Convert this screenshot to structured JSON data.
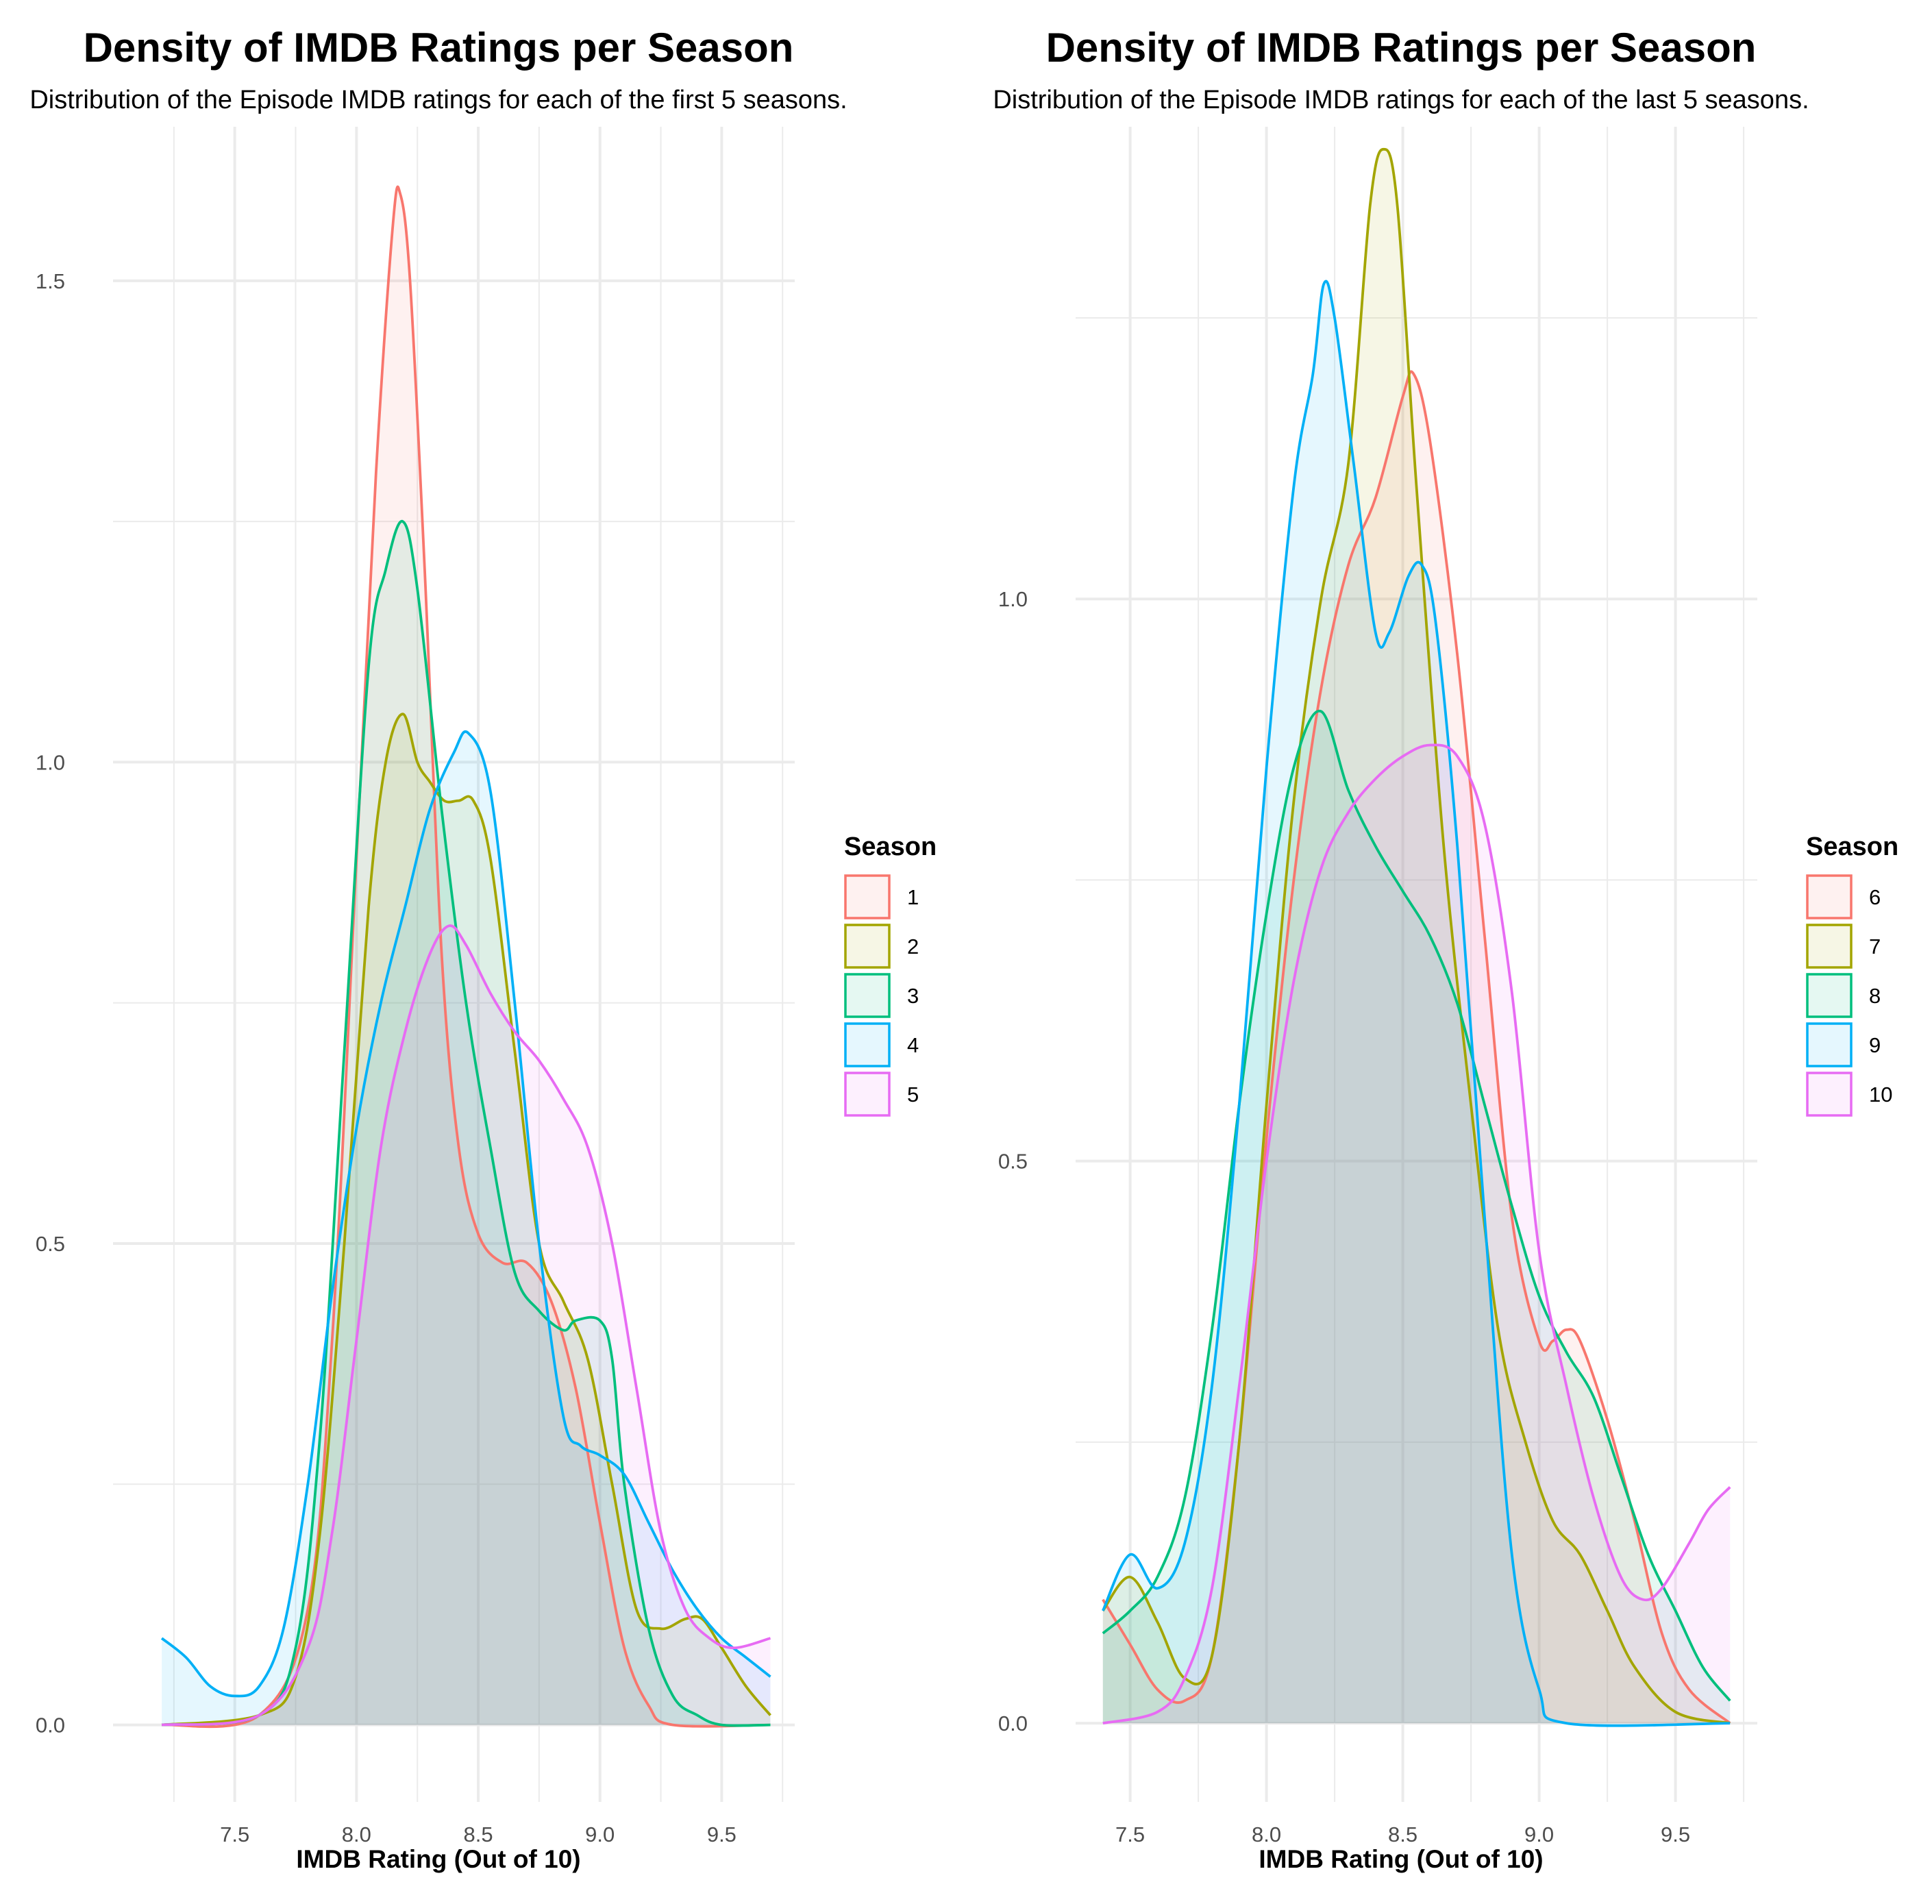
{
  "chart_data": [
    {
      "type": "area",
      "title": "Density of IMDB Ratings per Season",
      "subtitle": "Distribution of the Episode IMDB ratings for each of the first 5 seasons.",
      "xlabel": "IMDB Rating (Out of 10)",
      "ylabel": "",
      "xlim": [
        7.0,
        9.8
      ],
      "ylim": [
        -0.08,
        1.66
      ],
      "x_ticks": [
        "7.5",
        "8.0",
        "8.5",
        "9.0",
        "9.5"
      ],
      "x_tick_values": [
        7.5,
        8.0,
        8.5,
        9.0,
        9.5
      ],
      "y_ticks": [
        "0.0",
        "0.5",
        "1.0",
        "1.5"
      ],
      "y_tick_values": [
        0.0,
        0.5,
        1.0,
        1.5
      ],
      "grid": true,
      "legend": {
        "title": "Season",
        "position": "right"
      },
      "series": [
        {
          "name": "1",
          "color": "#F8766D",
          "points": [
            [
              7.2,
              0
            ],
            [
              7.6,
              0.01
            ],
            [
              7.8,
              0.12
            ],
            [
              7.9,
              0.4
            ],
            [
              8.0,
              0.9
            ],
            [
              8.08,
              1.3
            ],
            [
              8.15,
              1.56
            ],
            [
              8.18,
              1.59
            ],
            [
              8.22,
              1.5
            ],
            [
              8.28,
              1.2
            ],
            [
              8.35,
              0.8
            ],
            [
              8.42,
              0.6
            ],
            [
              8.5,
              0.51
            ],
            [
              8.6,
              0.48
            ],
            [
              8.7,
              0.48
            ],
            [
              8.8,
              0.44
            ],
            [
              8.9,
              0.35
            ],
            [
              9.0,
              0.21
            ],
            [
              9.1,
              0.08
            ],
            [
              9.2,
              0.02
            ],
            [
              9.3,
              0.0
            ],
            [
              9.7,
              0.0
            ]
          ]
        },
        {
          "name": "2",
          "color": "#A3A500",
          "points": [
            [
              7.2,
              0
            ],
            [
              7.6,
              0.01
            ],
            [
              7.75,
              0.05
            ],
            [
              7.85,
              0.2
            ],
            [
              7.95,
              0.5
            ],
            [
              8.05,
              0.85
            ],
            [
              8.12,
              1.0
            ],
            [
              8.19,
              1.05
            ],
            [
              8.25,
              1.0
            ],
            [
              8.3,
              0.98
            ],
            [
              8.36,
              0.96
            ],
            [
              8.42,
              0.96
            ],
            [
              8.48,
              0.96
            ],
            [
              8.55,
              0.9
            ],
            [
              8.65,
              0.7
            ],
            [
              8.75,
              0.5
            ],
            [
              8.85,
              0.44
            ],
            [
              8.95,
              0.38
            ],
            [
              9.05,
              0.25
            ],
            [
              9.15,
              0.12
            ],
            [
              9.25,
              0.1
            ],
            [
              9.35,
              0.11
            ],
            [
              9.42,
              0.11
            ],
            [
              9.5,
              0.08
            ],
            [
              9.6,
              0.04
            ],
            [
              9.7,
              0.01
            ]
          ]
        },
        {
          "name": "3",
          "color": "#00BF7D",
          "points": [
            [
              7.2,
              0
            ],
            [
              7.6,
              0.01
            ],
            [
              7.75,
              0.08
            ],
            [
              7.85,
              0.3
            ],
            [
              7.95,
              0.7
            ],
            [
              8.05,
              1.1
            ],
            [
              8.12,
              1.2
            ],
            [
              8.19,
              1.25
            ],
            [
              8.25,
              1.18
            ],
            [
              8.35,
              0.95
            ],
            [
              8.45,
              0.75
            ],
            [
              8.55,
              0.6
            ],
            [
              8.65,
              0.47
            ],
            [
              8.75,
              0.43
            ],
            [
              8.85,
              0.41
            ],
            [
              8.9,
              0.42
            ],
            [
              9.0,
              0.42
            ],
            [
              9.05,
              0.38
            ],
            [
              9.1,
              0.25
            ],
            [
              9.2,
              0.1
            ],
            [
              9.3,
              0.03
            ],
            [
              9.4,
              0.01
            ],
            [
              9.5,
              0.0
            ],
            [
              9.7,
              0.0
            ]
          ]
        },
        {
          "name": "4",
          "color": "#00B0F6",
          "points": [
            [
              7.2,
              0.09
            ],
            [
              7.3,
              0.07
            ],
            [
              7.4,
              0.04
            ],
            [
              7.5,
              0.03
            ],
            [
              7.6,
              0.04
            ],
            [
              7.7,
              0.1
            ],
            [
              7.8,
              0.25
            ],
            [
              7.9,
              0.45
            ],
            [
              8.0,
              0.62
            ],
            [
              8.1,
              0.75
            ],
            [
              8.2,
              0.85
            ],
            [
              8.3,
              0.95
            ],
            [
              8.4,
              1.01
            ],
            [
              8.46,
              1.03
            ],
            [
              8.55,
              0.97
            ],
            [
              8.65,
              0.75
            ],
            [
              8.75,
              0.5
            ],
            [
              8.85,
              0.32
            ],
            [
              8.92,
              0.29
            ],
            [
              9.0,
              0.28
            ],
            [
              9.1,
              0.26
            ],
            [
              9.2,
              0.21
            ],
            [
              9.3,
              0.16
            ],
            [
              9.4,
              0.12
            ],
            [
              9.5,
              0.09
            ],
            [
              9.6,
              0.07
            ],
            [
              9.7,
              0.05
            ]
          ]
        },
        {
          "name": "5",
          "color": "#E76BF3",
          "points": [
            [
              7.2,
              0
            ],
            [
              7.6,
              0.01
            ],
            [
              7.8,
              0.08
            ],
            [
              7.9,
              0.2
            ],
            [
              8.0,
              0.4
            ],
            [
              8.1,
              0.6
            ],
            [
              8.2,
              0.72
            ],
            [
              8.3,
              0.8
            ],
            [
              8.38,
              0.83
            ],
            [
              8.45,
              0.81
            ],
            [
              8.55,
              0.76
            ],
            [
              8.65,
              0.72
            ],
            [
              8.75,
              0.69
            ],
            [
              8.85,
              0.65
            ],
            [
              8.95,
              0.6
            ],
            [
              9.05,
              0.5
            ],
            [
              9.15,
              0.35
            ],
            [
              9.25,
              0.2
            ],
            [
              9.35,
              0.12
            ],
            [
              9.45,
              0.09
            ],
            [
              9.55,
              0.08
            ],
            [
              9.7,
              0.09
            ]
          ]
        }
      ]
    },
    {
      "type": "area",
      "title": "Density of IMDB Ratings per Season",
      "subtitle": "Distribution of the Episode IMDB ratings for each of the last 5 seasons.",
      "xlabel": "IMDB Rating (Out of 10)",
      "ylabel": "",
      "xlim": [
        7.3,
        9.8
      ],
      "ylim": [
        -0.07,
        1.42
      ],
      "x_ticks": [
        "7.5",
        "8.0",
        "8.5",
        "9.0",
        "9.5"
      ],
      "x_tick_values": [
        7.5,
        8.0,
        8.5,
        9.0,
        9.5
      ],
      "y_ticks": [
        "0.0",
        "0.5",
        "1.0"
      ],
      "y_tick_values": [
        0.0,
        0.5,
        1.0
      ],
      "grid": true,
      "legend": {
        "title": "Season",
        "position": "right"
      },
      "series": [
        {
          "name": "6",
          "color": "#F8766D",
          "points": [
            [
              7.4,
              0.11
            ],
            [
              7.5,
              0.07
            ],
            [
              7.6,
              0.03
            ],
            [
              7.7,
              0.02
            ],
            [
              7.8,
              0.06
            ],
            [
              7.9,
              0.25
            ],
            [
              8.0,
              0.52
            ],
            [
              8.1,
              0.75
            ],
            [
              8.2,
              0.92
            ],
            [
              8.3,
              1.03
            ],
            [
              8.4,
              1.09
            ],
            [
              8.5,
              1.18
            ],
            [
              8.54,
              1.2
            ],
            [
              8.6,
              1.14
            ],
            [
              8.7,
              0.95
            ],
            [
              8.8,
              0.7
            ],
            [
              8.9,
              0.45
            ],
            [
              9.0,
              0.34
            ],
            [
              9.05,
              0.34
            ],
            [
              9.1,
              0.35
            ],
            [
              9.15,
              0.34
            ],
            [
              9.25,
              0.27
            ],
            [
              9.35,
              0.18
            ],
            [
              9.45,
              0.08
            ],
            [
              9.55,
              0.03
            ],
            [
              9.7,
              0.0
            ]
          ]
        },
        {
          "name": "7",
          "color": "#A3A500",
          "points": [
            [
              7.4,
              0.1
            ],
            [
              7.5,
              0.13
            ],
            [
              7.6,
              0.09
            ],
            [
              7.7,
              0.04
            ],
            [
              7.8,
              0.06
            ],
            [
              7.9,
              0.25
            ],
            [
              8.0,
              0.55
            ],
            [
              8.1,
              0.82
            ],
            [
              8.2,
              1.0
            ],
            [
              8.3,
              1.12
            ],
            [
              8.38,
              1.35
            ],
            [
              8.43,
              1.4
            ],
            [
              8.48,
              1.35
            ],
            [
              8.55,
              1.1
            ],
            [
              8.65,
              0.78
            ],
            [
              8.75,
              0.55
            ],
            [
              8.85,
              0.35
            ],
            [
              8.95,
              0.25
            ],
            [
              9.05,
              0.18
            ],
            [
              9.15,
              0.15
            ],
            [
              9.25,
              0.1
            ],
            [
              9.35,
              0.05
            ],
            [
              9.5,
              0.01
            ],
            [
              9.7,
              0.0
            ]
          ]
        },
        {
          "name": "8",
          "color": "#00BF7D",
          "points": [
            [
              7.4,
              0.08
            ],
            [
              7.5,
              0.1
            ],
            [
              7.6,
              0.13
            ],
            [
              7.7,
              0.2
            ],
            [
              7.8,
              0.35
            ],
            [
              7.9,
              0.55
            ],
            [
              8.0,
              0.72
            ],
            [
              8.1,
              0.85
            ],
            [
              8.2,
              0.9
            ],
            [
              8.3,
              0.83
            ],
            [
              8.4,
              0.78
            ],
            [
              8.5,
              0.74
            ],
            [
              8.6,
              0.7
            ],
            [
              8.7,
              0.64
            ],
            [
              8.8,
              0.55
            ],
            [
              8.9,
              0.46
            ],
            [
              9.0,
              0.38
            ],
            [
              9.1,
              0.33
            ],
            [
              9.2,
              0.29
            ],
            [
              9.3,
              0.22
            ],
            [
              9.4,
              0.15
            ],
            [
              9.5,
              0.1
            ],
            [
              9.6,
              0.05
            ],
            [
              9.7,
              0.02
            ]
          ]
        },
        {
          "name": "9",
          "color": "#00B0F6",
          "points": [
            [
              7.4,
              0.1
            ],
            [
              7.5,
              0.15
            ],
            [
              7.6,
              0.12
            ],
            [
              7.7,
              0.16
            ],
            [
              7.8,
              0.3
            ],
            [
              7.9,
              0.55
            ],
            [
              8.0,
              0.85
            ],
            [
              8.1,
              1.1
            ],
            [
              8.17,
              1.2
            ],
            [
              8.21,
              1.28
            ],
            [
              8.25,
              1.25
            ],
            [
              8.32,
              1.12
            ],
            [
              8.4,
              0.97
            ],
            [
              8.45,
              0.97
            ],
            [
              8.52,
              1.02
            ],
            [
              8.57,
              1.03
            ],
            [
              8.62,
              0.98
            ],
            [
              8.7,
              0.78
            ],
            [
              8.8,
              0.45
            ],
            [
              8.9,
              0.15
            ],
            [
              9.0,
              0.03
            ],
            [
              9.1,
              0.0
            ],
            [
              9.7,
              0.0
            ]
          ]
        },
        {
          "name": "10",
          "color": "#E76BF3",
          "points": [
            [
              7.4,
              0.0
            ],
            [
              7.6,
              0.01
            ],
            [
              7.7,
              0.04
            ],
            [
              7.8,
              0.12
            ],
            [
              7.9,
              0.3
            ],
            [
              8.0,
              0.5
            ],
            [
              8.1,
              0.66
            ],
            [
              8.2,
              0.76
            ],
            [
              8.3,
              0.81
            ],
            [
              8.4,
              0.84
            ],
            [
              8.5,
              0.86
            ],
            [
              8.6,
              0.87
            ],
            [
              8.7,
              0.86
            ],
            [
              8.8,
              0.8
            ],
            [
              8.9,
              0.65
            ],
            [
              9.0,
              0.42
            ],
            [
              9.1,
              0.3
            ],
            [
              9.2,
              0.2
            ],
            [
              9.3,
              0.13
            ],
            [
              9.38,
              0.11
            ],
            [
              9.45,
              0.12
            ],
            [
              9.55,
              0.16
            ],
            [
              9.62,
              0.19
            ],
            [
              9.7,
              0.21
            ]
          ]
        }
      ]
    }
  ]
}
